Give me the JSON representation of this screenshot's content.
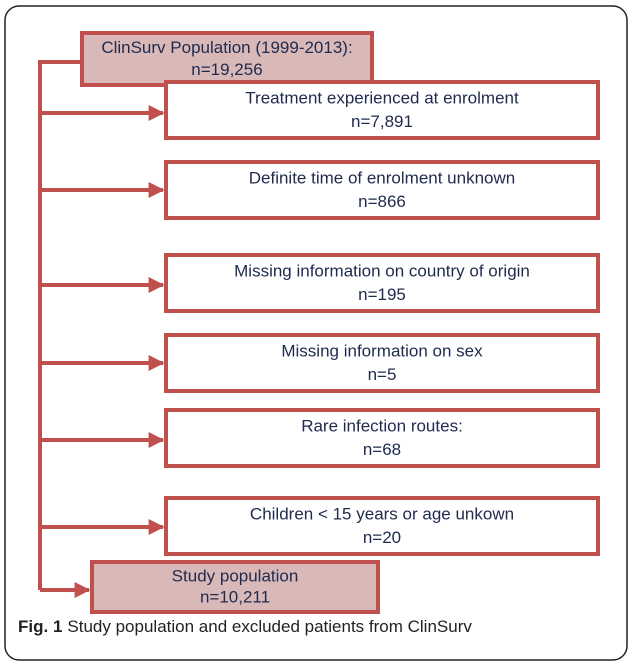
{
  "source": {
    "label": "ClinSurv Population (1999-2013):",
    "count": "n=19,256"
  },
  "exclusions": [
    {
      "label": "Treatment experienced at enrolment",
      "count": "n=7,891"
    },
    {
      "label": "Definite time of enrolment unknown",
      "count": "n=866"
    },
    {
      "label": "Missing information on country of origin",
      "count": "n=195"
    },
    {
      "label": "Missing information on sex",
      "count": "n=5"
    },
    {
      "label": "Rare infection routes:",
      "count": "n=68"
    },
    {
      "label": "Children < 15 years or age unkown",
      "count": "n=20"
    }
  ],
  "result": {
    "label": "Study population",
    "count": "n=10,211"
  },
  "caption": {
    "label": "Fig. 1",
    "text": "Study population and excluded patients from ClinSurv"
  }
}
